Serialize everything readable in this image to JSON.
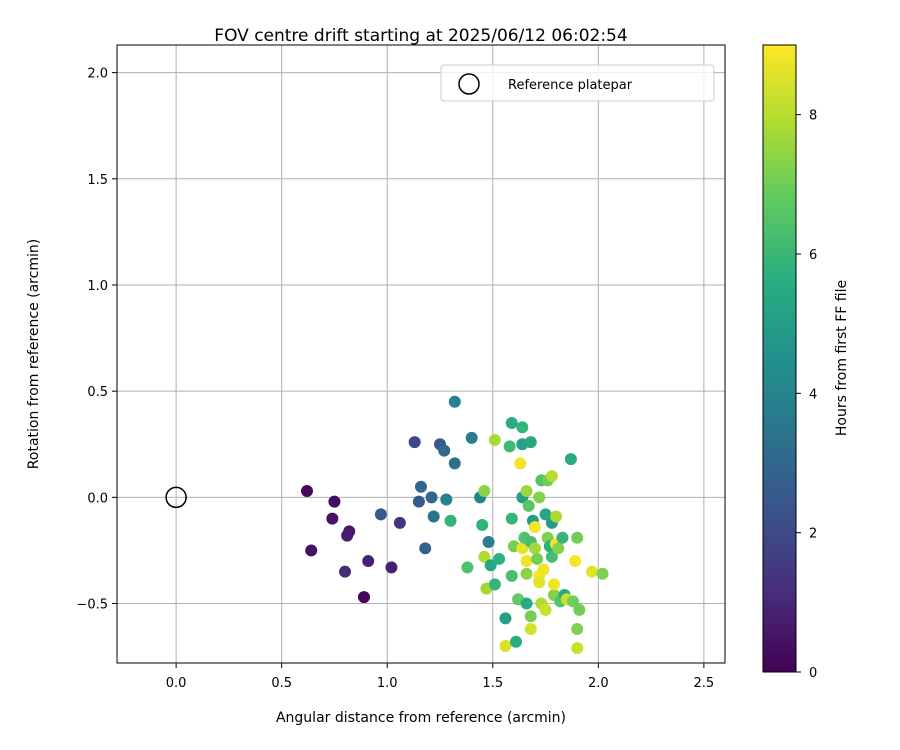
{
  "chart_data": {
    "type": "scatter",
    "title": "FOV centre drift starting at 2025/06/12 06:02:54",
    "xlabel": "Angular distance from reference (arcmin)",
    "ylabel": "Rotation from reference (arcmin)",
    "xlim": [
      -0.28,
      2.6
    ],
    "ylim": [
      -0.78,
      2.13
    ],
    "xticks": [
      0.0,
      0.5,
      1.0,
      1.5,
      2.0,
      2.5
    ],
    "xtick_labels": [
      "0.0",
      "0.5",
      "1.0",
      "1.5",
      "2.0",
      "2.5"
    ],
    "yticks": [
      -0.5,
      0.0,
      0.5,
      1.0,
      1.5,
      2.0
    ],
    "ytick_labels": [
      "−0.5",
      "0.0",
      "0.5",
      "1.0",
      "1.5",
      "2.0"
    ],
    "grid": true,
    "legend": {
      "placement": "top-right",
      "entries": [
        "Reference platepar"
      ]
    },
    "colorbar": {
      "label": "Hours from first FF file",
      "colormap": "viridis",
      "range": [
        0,
        9
      ],
      "ticks": [
        0,
        2,
        4,
        6,
        8
      ],
      "tick_labels": [
        "0",
        "2",
        "4",
        "6",
        "8"
      ]
    },
    "reference_point": {
      "x": 0.0,
      "y": 0.0,
      "label": "Reference platepar"
    },
    "points": [
      {
        "x": 0.62,
        "y": 0.03,
        "hours": 0.2
      },
      {
        "x": 0.75,
        "y": -0.02,
        "hours": 0.3
      },
      {
        "x": 0.74,
        "y": -0.1,
        "hours": 0.5
      },
      {
        "x": 0.82,
        "y": -0.16,
        "hours": 0.6
      },
      {
        "x": 0.81,
        "y": -0.18,
        "hours": 0.7
      },
      {
        "x": 0.64,
        "y": -0.25,
        "hours": 0.4
      },
      {
        "x": 0.8,
        "y": -0.35,
        "hours": 1.1
      },
      {
        "x": 0.91,
        "y": -0.3,
        "hours": 0.9
      },
      {
        "x": 0.89,
        "y": -0.47,
        "hours": 0.1
      },
      {
        "x": 1.02,
        "y": -0.33,
        "hours": 0.8
      },
      {
        "x": 0.97,
        "y": -0.08,
        "hours": 2.5
      },
      {
        "x": 1.06,
        "y": -0.12,
        "hours": 1.4
      },
      {
        "x": 1.13,
        "y": 0.26,
        "hours": 2.0
      },
      {
        "x": 1.16,
        "y": 0.05,
        "hours": 3.0
      },
      {
        "x": 1.15,
        "y": -0.02,
        "hours": 2.6
      },
      {
        "x": 1.18,
        "y": -0.24,
        "hours": 2.8
      },
      {
        "x": 1.21,
        "y": 0.0,
        "hours": 3.0
      },
      {
        "x": 1.22,
        "y": -0.09,
        "hours": 3.4
      },
      {
        "x": 1.25,
        "y": 0.25,
        "hours": 2.6
      },
      {
        "x": 1.27,
        "y": 0.22,
        "hours": 3.0
      },
      {
        "x": 1.28,
        "y": -0.01,
        "hours": 4.0
      },
      {
        "x": 1.3,
        "y": -0.11,
        "hours": 5.8
      },
      {
        "x": 1.32,
        "y": 0.45,
        "hours": 3.9
      },
      {
        "x": 1.32,
        "y": 0.16,
        "hours": 3.3
      },
      {
        "x": 1.4,
        "y": 0.28,
        "hours": 3.8
      },
      {
        "x": 1.38,
        "y": -0.33,
        "hours": 6.4
      },
      {
        "x": 1.44,
        "y": 0.0,
        "hours": 4.0
      },
      {
        "x": 1.45,
        "y": -0.13,
        "hours": 5.8
      },
      {
        "x": 1.46,
        "y": 0.03,
        "hours": 7.4
      },
      {
        "x": 1.46,
        "y": -0.28,
        "hours": 7.9
      },
      {
        "x": 1.48,
        "y": -0.21,
        "hours": 3.9
      },
      {
        "x": 1.47,
        "y": -0.43,
        "hours": 7.7
      },
      {
        "x": 1.49,
        "y": -0.32,
        "hours": 5.3
      },
      {
        "x": 1.51,
        "y": -0.41,
        "hours": 5.9
      },
      {
        "x": 1.51,
        "y": 0.27,
        "hours": 7.8
      },
      {
        "x": 1.53,
        "y": -0.29,
        "hours": 5.7
      },
      {
        "x": 1.56,
        "y": -0.57,
        "hours": 5.1
      },
      {
        "x": 1.56,
        "y": -0.7,
        "hours": 8.5
      },
      {
        "x": 1.58,
        "y": 0.24,
        "hours": 6.1
      },
      {
        "x": 1.59,
        "y": 0.35,
        "hours": 5.6
      },
      {
        "x": 1.59,
        "y": -0.1,
        "hours": 5.9
      },
      {
        "x": 1.59,
        "y": -0.37,
        "hours": 6.3
      },
      {
        "x": 1.6,
        "y": -0.23,
        "hours": 7.1
      },
      {
        "x": 1.61,
        "y": -0.68,
        "hours": 5.6
      },
      {
        "x": 1.62,
        "y": -0.48,
        "hours": 6.8
      },
      {
        "x": 1.63,
        "y": 0.16,
        "hours": 8.8
      },
      {
        "x": 1.64,
        "y": 0.33,
        "hours": 5.9
      },
      {
        "x": 1.64,
        "y": 0.25,
        "hours": 5.1
      },
      {
        "x": 1.64,
        "y": 0.0,
        "hours": 5.1
      },
      {
        "x": 1.64,
        "y": -0.24,
        "hours": 8.7
      },
      {
        "x": 1.65,
        "y": -0.19,
        "hours": 6.5
      },
      {
        "x": 1.66,
        "y": 0.03,
        "hours": 7.6
      },
      {
        "x": 1.66,
        "y": -0.3,
        "hours": 8.8
      },
      {
        "x": 1.66,
        "y": -0.36,
        "hours": 7.4
      },
      {
        "x": 1.66,
        "y": -0.5,
        "hours": 5.5
      },
      {
        "x": 1.67,
        "y": -0.04,
        "hours": 6.6
      },
      {
        "x": 1.68,
        "y": 0.26,
        "hours": 5.4
      },
      {
        "x": 1.68,
        "y": -0.21,
        "hours": 6.3
      },
      {
        "x": 1.68,
        "y": -0.56,
        "hours": 7.1
      },
      {
        "x": 1.68,
        "y": -0.62,
        "hours": 8.4
      },
      {
        "x": 1.69,
        "y": -0.11,
        "hours": 5.0
      },
      {
        "x": 1.7,
        "y": -0.24,
        "hours": 7.7
      },
      {
        "x": 1.7,
        "y": -0.14,
        "hours": 8.9
      },
      {
        "x": 1.71,
        "y": -0.29,
        "hours": 7.1
      },
      {
        "x": 1.72,
        "y": 0.0,
        "hours": 7.3
      },
      {
        "x": 1.72,
        "y": -0.37,
        "hours": 8.9
      },
      {
        "x": 1.72,
        "y": -0.4,
        "hours": 8.6
      },
      {
        "x": 1.73,
        "y": -0.5,
        "hours": 7.9
      },
      {
        "x": 1.73,
        "y": 0.08,
        "hours": 6.4
      },
      {
        "x": 1.74,
        "y": -0.34,
        "hours": 8.8
      },
      {
        "x": 1.75,
        "y": -0.08,
        "hours": 5.3
      },
      {
        "x": 1.75,
        "y": -0.53,
        "hours": 8.3
      },
      {
        "x": 1.76,
        "y": -0.19,
        "hours": 7.2
      },
      {
        "x": 1.76,
        "y": 0.08,
        "hours": 7.0
      },
      {
        "x": 1.77,
        "y": -0.23,
        "hours": 5.7
      },
      {
        "x": 1.78,
        "y": 0.1,
        "hours": 8.0
      },
      {
        "x": 1.78,
        "y": -0.12,
        "hours": 4.9
      },
      {
        "x": 1.78,
        "y": -0.28,
        "hours": 6.2
      },
      {
        "x": 1.79,
        "y": -0.46,
        "hours": 7.3
      },
      {
        "x": 1.79,
        "y": -0.41,
        "hours": 8.8
      },
      {
        "x": 1.8,
        "y": -0.09,
        "hours": 7.8
      },
      {
        "x": 1.8,
        "y": -0.22,
        "hours": 8.9
      },
      {
        "x": 1.81,
        "y": -0.24,
        "hours": 7.3
      },
      {
        "x": 1.82,
        "y": -0.49,
        "hours": 6.5
      },
      {
        "x": 1.83,
        "y": -0.19,
        "hours": 5.9
      },
      {
        "x": 1.84,
        "y": -0.46,
        "hours": 5.4
      },
      {
        "x": 1.85,
        "y": -0.48,
        "hours": 8.3
      },
      {
        "x": 1.87,
        "y": 0.18,
        "hours": 5.5
      },
      {
        "x": 1.88,
        "y": -0.49,
        "hours": 7.0
      },
      {
        "x": 1.89,
        "y": -0.3,
        "hours": 8.9
      },
      {
        "x": 1.9,
        "y": -0.19,
        "hours": 7.0
      },
      {
        "x": 1.9,
        "y": -0.62,
        "hours": 7.2
      },
      {
        "x": 1.9,
        "y": -0.71,
        "hours": 8.3
      },
      {
        "x": 1.91,
        "y": -0.53,
        "hours": 7.0
      },
      {
        "x": 1.97,
        "y": -0.35,
        "hours": 8.6
      },
      {
        "x": 2.02,
        "y": -0.36,
        "hours": 7.2
      }
    ]
  }
}
